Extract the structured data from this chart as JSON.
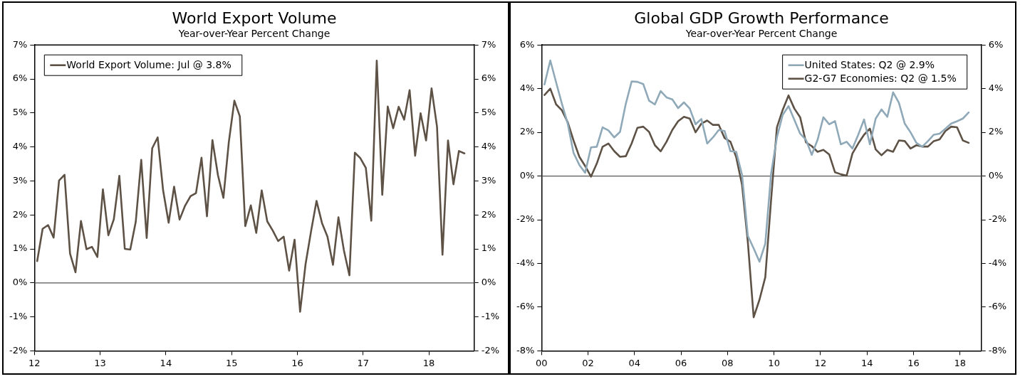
{
  "chart_data": [
    {
      "type": "line",
      "title": "World Export Volume",
      "subtitle": "Year-over-Year Percent Change",
      "x": [
        12.042,
        12.125,
        12.208,
        12.292,
        12.375,
        12.458,
        12.542,
        12.625,
        12.708,
        12.792,
        12.875,
        12.958,
        13.042,
        13.125,
        13.208,
        13.292,
        13.375,
        13.458,
        13.542,
        13.625,
        13.708,
        13.792,
        13.875,
        13.958,
        14.042,
        14.125,
        14.208,
        14.292,
        14.375,
        14.458,
        14.542,
        14.625,
        14.708,
        14.792,
        14.875,
        14.958,
        15.042,
        15.125,
        15.208,
        15.292,
        15.375,
        15.458,
        15.542,
        15.625,
        15.708,
        15.792,
        15.875,
        15.958,
        16.042,
        16.125,
        16.208,
        16.292,
        16.375,
        16.458,
        16.542,
        16.625,
        16.708,
        16.792,
        16.875,
        16.958,
        17.042,
        17.125,
        17.208,
        17.292,
        17.375,
        17.458,
        17.542,
        17.625,
        17.708,
        17.792,
        17.875,
        17.958,
        18.042,
        18.125,
        18.208,
        18.292,
        18.375,
        18.458,
        18.542
      ],
      "series": [
        {
          "name": "World Export Volume: Jul @ 3.8%",
          "color": "#5e5246",
          "values": [
            0.64,
            1.59,
            1.7,
            1.33,
            3.01,
            3.18,
            0.86,
            0.31,
            1.82,
            0.99,
            1.06,
            0.76,
            2.75,
            1.4,
            1.87,
            3.15,
            1.0,
            0.98,
            1.8,
            3.62,
            1.32,
            3.96,
            4.28,
            2.72,
            1.77,
            2.83,
            1.86,
            2.27,
            2.55,
            2.64,
            3.68,
            1.96,
            4.2,
            3.17,
            2.5,
            4.15,
            5.36,
            4.9,
            1.67,
            2.28,
            1.47,
            2.72,
            1.81,
            1.54,
            1.23,
            1.36,
            0.36,
            1.27,
            -0.85,
            0.55,
            1.51,
            2.41,
            1.76,
            1.36,
            0.53,
            1.93,
            0.96,
            0.22,
            3.83,
            3.67,
            3.38,
            1.83,
            6.54,
            2.59,
            5.19,
            4.55,
            5.18,
            4.8,
            5.67,
            3.74,
            4.99,
            4.19,
            5.72,
            4.59,
            0.83,
            4.19,
            2.9,
            3.88,
            3.81
          ]
        }
      ],
      "xlim": [
        12,
        18.69
      ],
      "xticks": [
        12,
        13,
        14,
        15,
        16,
        17,
        18
      ],
      "ylim": [
        -2,
        7
      ],
      "yticks": [
        {
          "value": -2,
          "label": "-2%"
        },
        {
          "value": -1,
          "label": "-1%"
        },
        {
          "value": 0,
          "label": "0%"
        },
        {
          "value": 1,
          "label": "1%"
        },
        {
          "value": 2,
          "label": "2%"
        },
        {
          "value": 3,
          "label": "3%"
        },
        {
          "value": 4,
          "label": "4%"
        },
        {
          "value": 5,
          "label": "5%"
        },
        {
          "value": 6,
          "label": "6%"
        },
        {
          "value": 7,
          "label": "7%"
        }
      ],
      "y2lim": [
        -2,
        7
      ],
      "y2ticks": [
        {
          "value": -2,
          "label": "-2%"
        },
        {
          "value": -1,
          "label": "-1%"
        },
        {
          "value": 0,
          "label": "0%"
        },
        {
          "value": 1,
          "label": "1%"
        },
        {
          "value": 2,
          "label": "2%"
        },
        {
          "value": 3,
          "label": "3%"
        },
        {
          "value": 4,
          "label": "4%"
        },
        {
          "value": 5,
          "label": "5%"
        },
        {
          "value": 6,
          "label": "6%"
        },
        {
          "value": 7,
          "label": "7%"
        }
      ],
      "ref_lines": [
        {
          "axis": "y",
          "value": 0
        }
      ],
      "grid": false,
      "legend": "top left"
    },
    {
      "type": "line",
      "title": "Global GDP Growth Performance",
      "subtitle": "Year-over-Year Percent Change",
      "x": [
        0.125,
        0.375,
        0.625,
        0.875,
        1.125,
        1.375,
        1.625,
        1.875,
        2.125,
        2.375,
        2.625,
        2.875,
        3.125,
        3.375,
        3.625,
        3.875,
        4.125,
        4.375,
        4.625,
        4.875,
        5.125,
        5.375,
        5.625,
        5.875,
        6.125,
        6.375,
        6.625,
        6.875,
        7.125,
        7.375,
        7.625,
        7.875,
        8.125,
        8.375,
        8.625,
        8.875,
        9.125,
        9.375,
        9.625,
        9.875,
        10.125,
        10.375,
        10.625,
        10.875,
        11.125,
        11.375,
        11.625,
        11.875,
        12.125,
        12.375,
        12.625,
        12.875,
        13.125,
        13.375,
        13.625,
        13.875,
        14.125,
        14.375,
        14.625,
        14.875,
        15.125,
        15.375,
        15.625,
        15.875,
        16.125,
        16.375,
        16.625,
        16.875,
        17.125,
        17.375,
        17.625,
        17.875,
        18.125,
        18.375
      ],
      "series": [
        {
          "name": "United States: Q2 @ 2.9%",
          "color": "#8fa9b8",
          "values": [
            4.19,
            5.29,
            4.29,
            3.31,
            2.4,
            1.06,
            0.51,
            0.15,
            1.31,
            1.34,
            2.23,
            2.09,
            1.77,
            2.02,
            3.31,
            4.33,
            4.31,
            4.21,
            3.45,
            3.28,
            3.89,
            3.6,
            3.51,
            3.11,
            3.37,
            3.09,
            2.37,
            2.61,
            1.49,
            1.77,
            2.11,
            2.06,
            1.14,
            1.11,
            0.06,
            -2.74,
            -3.31,
            -3.92,
            -3.09,
            0.11,
            1.77,
            2.8,
            3.2,
            2.57,
            1.94,
            1.66,
            0.97,
            1.66,
            2.69,
            2.37,
            2.51,
            1.45,
            1.57,
            1.26,
            1.89,
            2.59,
            1.45,
            2.63,
            3.05,
            2.71,
            3.83,
            3.35,
            2.4,
            2.0,
            1.52,
            1.34,
            1.6,
            1.89,
            1.94,
            2.17,
            2.4,
            2.51,
            2.63,
            2.91
          ]
        },
        {
          "name": "G2-G7 Economies: Q2 @ 1.5%",
          "color": "#5e5246",
          "values": [
            3.71,
            4.0,
            3.28,
            3.01,
            2.46,
            1.63,
            0.88,
            0.46,
            -0.03,
            0.57,
            1.34,
            1.49,
            1.14,
            0.88,
            0.91,
            1.49,
            2.21,
            2.26,
            2.02,
            1.41,
            1.13,
            1.57,
            2.11,
            2.51,
            2.71,
            2.63,
            2.0,
            2.4,
            2.54,
            2.34,
            2.34,
            1.74,
            1.57,
            0.86,
            -0.4,
            -3.03,
            -6.46,
            -5.66,
            -4.63,
            -1.09,
            2.23,
            3.03,
            3.69,
            3.09,
            2.69,
            1.54,
            1.37,
            1.11,
            1.2,
            0.99,
            0.17,
            0.08,
            0.02,
            1.03,
            1.49,
            1.89,
            2.17,
            1.22,
            0.95,
            1.2,
            1.11,
            1.63,
            1.6,
            1.26,
            1.41,
            1.35,
            1.35,
            1.6,
            1.68,
            2.06,
            2.26,
            2.23,
            1.63,
            1.52
          ]
        }
      ],
      "xlim": [
        0,
        18.92
      ],
      "xticks": [
        {
          "value": 0,
          "label": "00"
        },
        {
          "value": 2,
          "label": "02"
        },
        {
          "value": 4,
          "label": "04"
        },
        {
          "value": 6,
          "label": "06"
        },
        {
          "value": 8,
          "label": "08"
        },
        {
          "value": 10,
          "label": "10"
        },
        {
          "value": 12,
          "label": "12"
        },
        {
          "value": 14,
          "label": "14"
        },
        {
          "value": 16,
          "label": "16"
        },
        {
          "value": 18,
          "label": "18"
        }
      ],
      "ylim": [
        -8,
        6
      ],
      "yticks": [
        {
          "value": -8,
          "label": "-8%"
        },
        {
          "value": -6,
          "label": "-6%"
        },
        {
          "value": -4,
          "label": "-4%"
        },
        {
          "value": -2,
          "label": "-2%"
        },
        {
          "value": 0,
          "label": "0%"
        },
        {
          "value": 2,
          "label": "2%"
        },
        {
          "value": 4,
          "label": "4%"
        },
        {
          "value": 6,
          "label": "6%"
        }
      ],
      "y2lim": [
        -8,
        6
      ],
      "y2ticks": [
        {
          "value": -8,
          "label": "-8%"
        },
        {
          "value": -6,
          "label": "-6%"
        },
        {
          "value": -4,
          "label": "-4%"
        },
        {
          "value": -2,
          "label": "-2%"
        },
        {
          "value": 0,
          "label": "0%"
        },
        {
          "value": 2,
          "label": "2%"
        },
        {
          "value": 4,
          "label": "4%"
        },
        {
          "value": 6,
          "label": "6%"
        }
      ],
      "ref_lines": [
        {
          "axis": "y",
          "value": 0
        }
      ],
      "grid": false,
      "legend": "top right"
    }
  ]
}
